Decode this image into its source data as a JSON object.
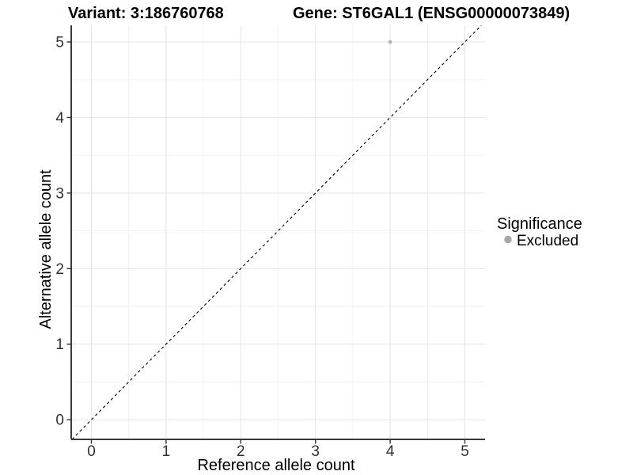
{
  "chart_data": {
    "type": "scatter",
    "titles": {
      "variant": "Variant: 3:186760768",
      "gene": "Gene: ST6GAL1 (ENSG00000073849)"
    },
    "xlabel": "Reference allele count",
    "ylabel": "Alternative allele count",
    "xlim": [
      -0.27,
      5.27
    ],
    "ylim": [
      -0.26,
      5.22
    ],
    "x_ticks": [
      0,
      1,
      2,
      3,
      4,
      5
    ],
    "y_ticks": [
      0,
      1,
      2,
      3,
      4,
      5
    ],
    "x_minor_ticks": [
      0.5,
      1.5,
      2.5,
      3.5,
      4.5
    ],
    "y_minor_ticks": [
      0.5,
      1.5,
      2.5,
      3.5,
      4.5
    ],
    "grid": "major+minor",
    "points": [
      {
        "x": 4,
        "y": 5,
        "series": "Excluded"
      }
    ],
    "identity_line": {
      "equation": "y = x",
      "style": "dashed",
      "color": "#000000"
    },
    "legend": {
      "title": "Significance",
      "position": "right",
      "items": [
        {
          "label": "Excluded",
          "color": "#a6a6a6",
          "marker": "circle"
        }
      ]
    },
    "colors": {
      "point": "#b4b4b4",
      "grid_major": "#e4e4e4",
      "grid_minor": "#f2f2f2",
      "axis_line": "#3a3a3a",
      "tick_label": "#303030",
      "title_text": "#000000",
      "background": "#ffffff"
    }
  }
}
